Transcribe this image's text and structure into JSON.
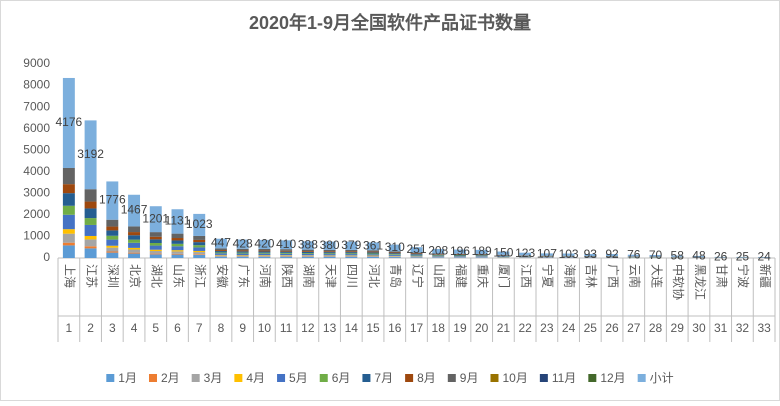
{
  "chart_data": {
    "type": "stacked_bar",
    "title": "2020年1-9月全国软件产品证书数量",
    "categories": [
      "上海",
      "江苏",
      "深圳",
      "北京",
      "湖北",
      "山东",
      "浙江",
      "安徽",
      "广东",
      "河南",
      "陕西",
      "湖南",
      "天津",
      "四川",
      "河北",
      "青岛",
      "辽宁",
      "山西",
      "福建",
      "重庆",
      "厦门",
      "江西",
      "宁夏",
      "海南",
      "吉林",
      "广西",
      "云南",
      "大连",
      "中软协",
      "黑龙江",
      "甘肃",
      "宁波",
      "新疆"
    ],
    "category_numbers": [
      1,
      2,
      3,
      4,
      5,
      6,
      7,
      8,
      9,
      10,
      11,
      12,
      13,
      14,
      15,
      16,
      17,
      18,
      19,
      20,
      21,
      22,
      23,
      24,
      25,
      26,
      27,
      28,
      29,
      30,
      31,
      32,
      33
    ],
    "ylim": [
      0,
      9000
    ],
    "yticks": [
      0,
      1000,
      2000,
      3000,
      4000,
      5000,
      6000,
      7000,
      8000,
      9000
    ],
    "grid": false,
    "legend": "bottom",
    "series": [
      {
        "name": "1月",
        "color": "#5b9bd5",
        "values": [
          585,
          447,
          249,
          205,
          168,
          158,
          143,
          63,
          60,
          59,
          57,
          54,
          53,
          53,
          51,
          43,
          35,
          29,
          27,
          26,
          21,
          17,
          15,
          14,
          13,
          13,
          11,
          10,
          8,
          7,
          4,
          4,
          3
        ]
      },
      {
        "name": "2月",
        "color": "#ed7d31",
        "values": [
          125,
          96,
          53,
          44,
          36,
          34,
          31,
          13,
          13,
          13,
          12,
          12,
          11,
          11,
          11,
          9,
          8,
          6,
          6,
          6,
          5,
          4,
          3,
          3,
          3,
          3,
          2,
          2,
          2,
          1,
          1,
          1,
          1
        ]
      },
      {
        "name": "3月",
        "color": "#a5a5a5",
        "values": [
          418,
          319,
          178,
          147,
          120,
          113,
          102,
          45,
          43,
          42,
          41,
          39,
          38,
          38,
          36,
          31,
          25,
          21,
          20,
          19,
          15,
          12,
          11,
          10,
          9,
          9,
          8,
          7,
          6,
          5,
          3,
          3,
          2
        ]
      },
      {
        "name": "4月",
        "color": "#ffc000",
        "values": [
          209,
          160,
          89,
          73,
          60,
          57,
          51,
          22,
          21,
          21,
          21,
          19,
          19,
          19,
          18,
          16,
          13,
          10,
          10,
          9,
          8,
          6,
          5,
          5,
          5,
          5,
          4,
          4,
          3,
          2,
          1,
          1,
          1
        ]
      },
      {
        "name": "5月",
        "color": "#4472c4",
        "values": [
          668,
          511,
          284,
          235,
          192,
          181,
          164,
          72,
          68,
          67,
          66,
          62,
          61,
          61,
          58,
          50,
          40,
          33,
          31,
          30,
          24,
          20,
          17,
          16,
          15,
          15,
          12,
          11,
          9,
          8,
          4,
          4,
          4
        ]
      },
      {
        "name": "6月",
        "color": "#70ad47",
        "values": [
          418,
          319,
          178,
          147,
          120,
          113,
          102,
          45,
          43,
          42,
          41,
          39,
          38,
          38,
          36,
          31,
          25,
          21,
          20,
          19,
          15,
          12,
          11,
          10,
          9,
          9,
          8,
          7,
          6,
          5,
          3,
          3,
          2
        ]
      },
      {
        "name": "7月",
        "color": "#255e91",
        "values": [
          585,
          447,
          249,
          205,
          168,
          158,
          143,
          63,
          60,
          59,
          57,
          54,
          53,
          53,
          51,
          43,
          35,
          29,
          27,
          26,
          21,
          17,
          15,
          14,
          13,
          13,
          11,
          10,
          8,
          7,
          4,
          4,
          3
        ]
      },
      {
        "name": "8月",
        "color": "#9e480e",
        "values": [
          418,
          319,
          178,
          147,
          120,
          113,
          102,
          45,
          43,
          42,
          41,
          39,
          38,
          38,
          36,
          31,
          25,
          21,
          20,
          19,
          15,
          12,
          11,
          10,
          9,
          9,
          8,
          7,
          6,
          5,
          3,
          3,
          2
        ]
      },
      {
        "name": "9月",
        "color": "#636363",
        "values": [
          750,
          574,
          318,
          264,
          217,
          204,
          185,
          79,
          77,
          75,
          74,
          70,
          69,
          68,
          64,
          56,
          45,
          38,
          35,
          35,
          26,
          23,
          19,
          21,
          17,
          16,
          12,
          12,
          10,
          8,
          3,
          2,
          6
        ]
      },
      {
        "name": "10月",
        "color": "#997300",
        "values": [
          0,
          0,
          0,
          0,
          0,
          0,
          0,
          0,
          0,
          0,
          0,
          0,
          0,
          0,
          0,
          0,
          0,
          0,
          0,
          0,
          0,
          0,
          0,
          0,
          0,
          0,
          0,
          0,
          0,
          0,
          0,
          0,
          0
        ]
      },
      {
        "name": "11月",
        "color": "#264478",
        "values": [
          0,
          0,
          0,
          0,
          0,
          0,
          0,
          0,
          0,
          0,
          0,
          0,
          0,
          0,
          0,
          0,
          0,
          0,
          0,
          0,
          0,
          0,
          0,
          0,
          0,
          0,
          0,
          0,
          0,
          0,
          0,
          0,
          0
        ]
      },
      {
        "name": "12月",
        "color": "#43682b",
        "values": [
          0,
          0,
          0,
          0,
          0,
          0,
          0,
          0,
          0,
          0,
          0,
          0,
          0,
          0,
          0,
          0,
          0,
          0,
          0,
          0,
          0,
          0,
          0,
          0,
          0,
          0,
          0,
          0,
          0,
          0,
          0,
          0,
          0
        ]
      },
      {
        "name": "小计",
        "color": "#7cafdd",
        "values": [
          4176,
          3192,
          1776,
          1467,
          1201,
          1131,
          1023,
          447,
          428,
          420,
          410,
          388,
          380,
          379,
          361,
          310,
          251,
          208,
          196,
          189,
          150,
          123,
          107,
          103,
          93,
          92,
          76,
          70,
          58,
          48,
          26,
          25,
          24
        ],
        "data_labels": true
      }
    ]
  }
}
